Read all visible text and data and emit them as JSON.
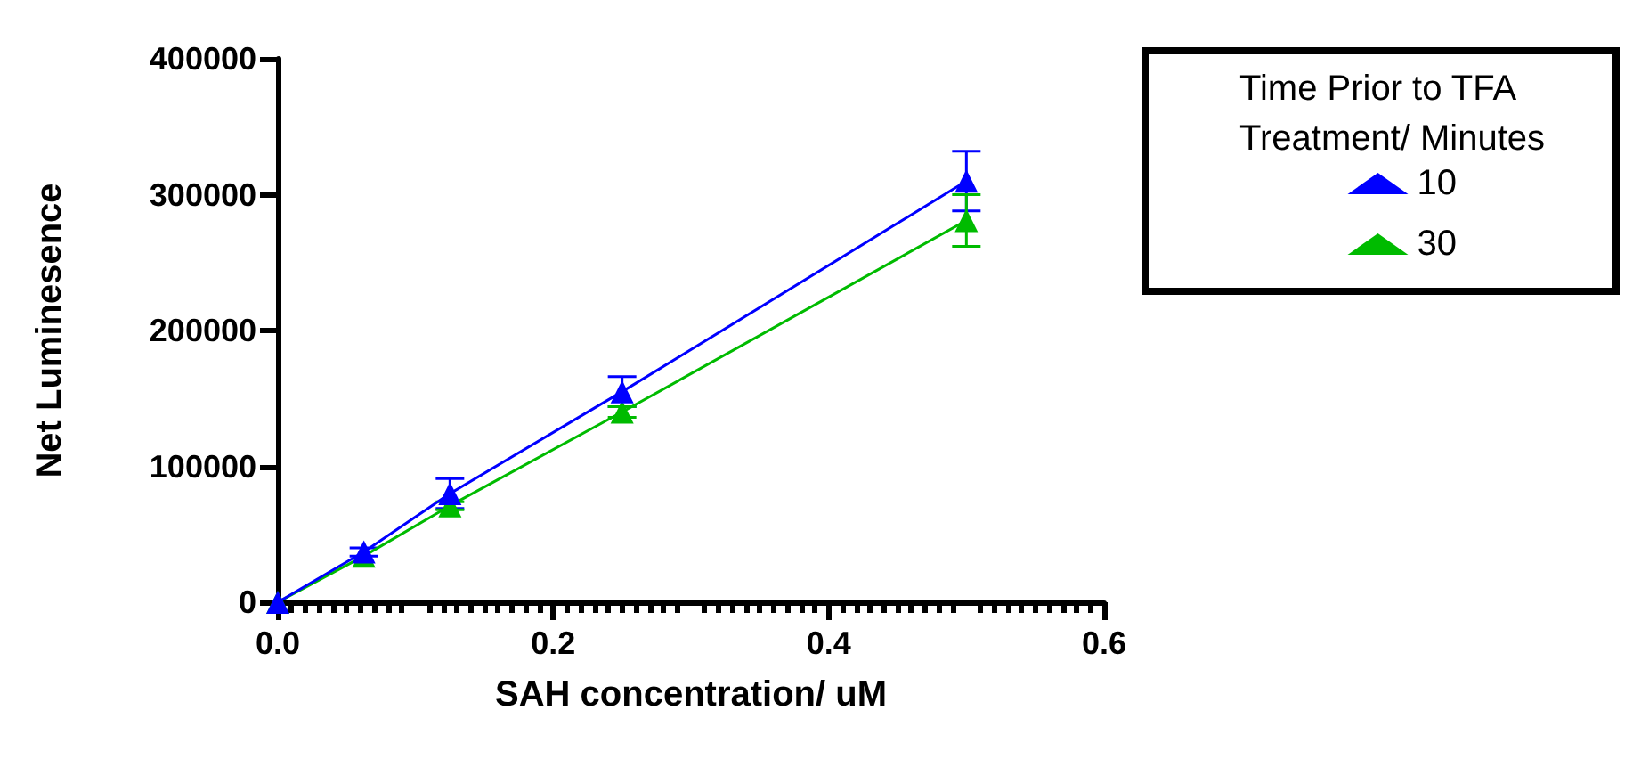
{
  "chart_data": {
    "type": "line",
    "xlabel": "SAH concentration/ uM",
    "ylabel": "Net Luminesence",
    "legend_title": "Time Prior to TFA\nTreatment/ Minutes",
    "legend": "top right",
    "marker": "triangle",
    "line_style": "solid",
    "grid": false,
    "x": [
      0,
      0.0625,
      0.125,
      0.25,
      0.5
    ],
    "series": [
      {
        "name": "10",
        "color": "#0000ff",
        "values": [
          0,
          37000,
          80000,
          155000,
          310000
        ],
        "errors": [
          null,
          3000,
          11000,
          11000,
          22000
        ]
      },
      {
        "name": "30",
        "color": "#00bb00",
        "values": [
          0,
          34000,
          71000,
          140000,
          281000
        ],
        "errors": [
          null,
          null,
          3000,
          4000,
          19000
        ]
      }
    ],
    "xlim": [
      0,
      0.6
    ],
    "xticks": [
      {
        "value": 0,
        "label": "0.0"
      },
      0.2,
      0.4,
      0.6
    ],
    "ylim": [
      0,
      400000
    ],
    "yticks": [
      0,
      100000,
      200000,
      300000,
      400000
    ]
  }
}
